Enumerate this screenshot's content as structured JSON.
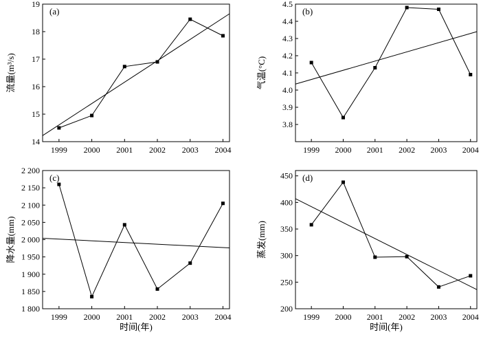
{
  "chart_data": [
    {
      "type": "line",
      "panel_label": "(a)",
      "ylabel": "流量(m³/s)",
      "xlabel": "",
      "categories": [
        "1999",
        "2000",
        "2001",
        "2002",
        "2003",
        "2004"
      ],
      "ylim": [
        14,
        19
      ],
      "yticks": [
        14,
        15,
        16,
        17,
        18,
        19
      ],
      "ytick_labels": [
        "14",
        "15",
        "16",
        "17",
        "18",
        "19"
      ],
      "series": [
        {
          "values": [
            14.5,
            14.95,
            16.73,
            16.9,
            18.45,
            17.85
          ]
        }
      ],
      "trendline": {
        "x": [
          1998.5,
          2004.2
        ],
        "y": [
          14.22,
          18.65
        ]
      },
      "color": "#000000"
    },
    {
      "type": "line",
      "panel_label": "(b)",
      "ylabel": "气温(°C)",
      "xlabel": "",
      "categories": [
        "1999",
        "2000",
        "2001",
        "2002",
        "2003",
        "2004"
      ],
      "ylim": [
        3.7,
        4.5
      ],
      "yticks": [
        3.8,
        3.9,
        4.0,
        4.1,
        4.2,
        4.3,
        4.4,
        4.5
      ],
      "ytick_labels": [
        "3.8",
        "3.9",
        "4.0",
        "4.1",
        "4.2",
        "4.3",
        "4.4",
        "4.5"
      ],
      "series": [
        {
          "values": [
            4.16,
            3.84,
            4.13,
            4.48,
            4.47,
            4.09
          ]
        }
      ],
      "trendline": {
        "x": [
          1998.5,
          2004.2
        ],
        "y": [
          4.035,
          4.34
        ]
      },
      "color": "#000000"
    },
    {
      "type": "line",
      "panel_label": "(c)",
      "ylabel": "降水量(mm)",
      "xlabel": "时间(年)",
      "categories": [
        "1999",
        "2000",
        "2001",
        "2002",
        "2003",
        "2004"
      ],
      "ylim": [
        1800,
        2200
      ],
      "yticks": [
        1800,
        1850,
        1900,
        1950,
        2000,
        2050,
        2100,
        2150,
        2200
      ],
      "ytick_labels": [
        "1 800",
        "1 850",
        "1 900",
        "1 950",
        "2 000",
        "2 050",
        "2 100",
        "2 150",
        "2 200"
      ],
      "series": [
        {
          "values": [
            2160,
            1835,
            2043,
            1857,
            1932,
            2105
          ]
        }
      ],
      "trendline": {
        "x": [
          1998.5,
          2004.2
        ],
        "y": [
          2004,
          1976
        ]
      },
      "color": "#000000"
    },
    {
      "type": "line",
      "panel_label": "(d)",
      "ylabel": "蒸发(mm)",
      "xlabel": "时间(年)",
      "categories": [
        "1999",
        "2000",
        "2001",
        "2002",
        "2003",
        "2004"
      ],
      "ylim": [
        200,
        460
      ],
      "yticks": [
        200,
        250,
        300,
        350,
        400,
        450
      ],
      "ytick_labels": [
        "200",
        "250",
        "300",
        "350",
        "400",
        "450"
      ],
      "series": [
        {
          "values": [
            358,
            438,
            297,
            298,
            241,
            262
          ]
        }
      ],
      "trendline": {
        "x": [
          1998.5,
          2004.2
        ],
        "y": [
          407,
          236
        ]
      },
      "color": "#000000"
    }
  ]
}
